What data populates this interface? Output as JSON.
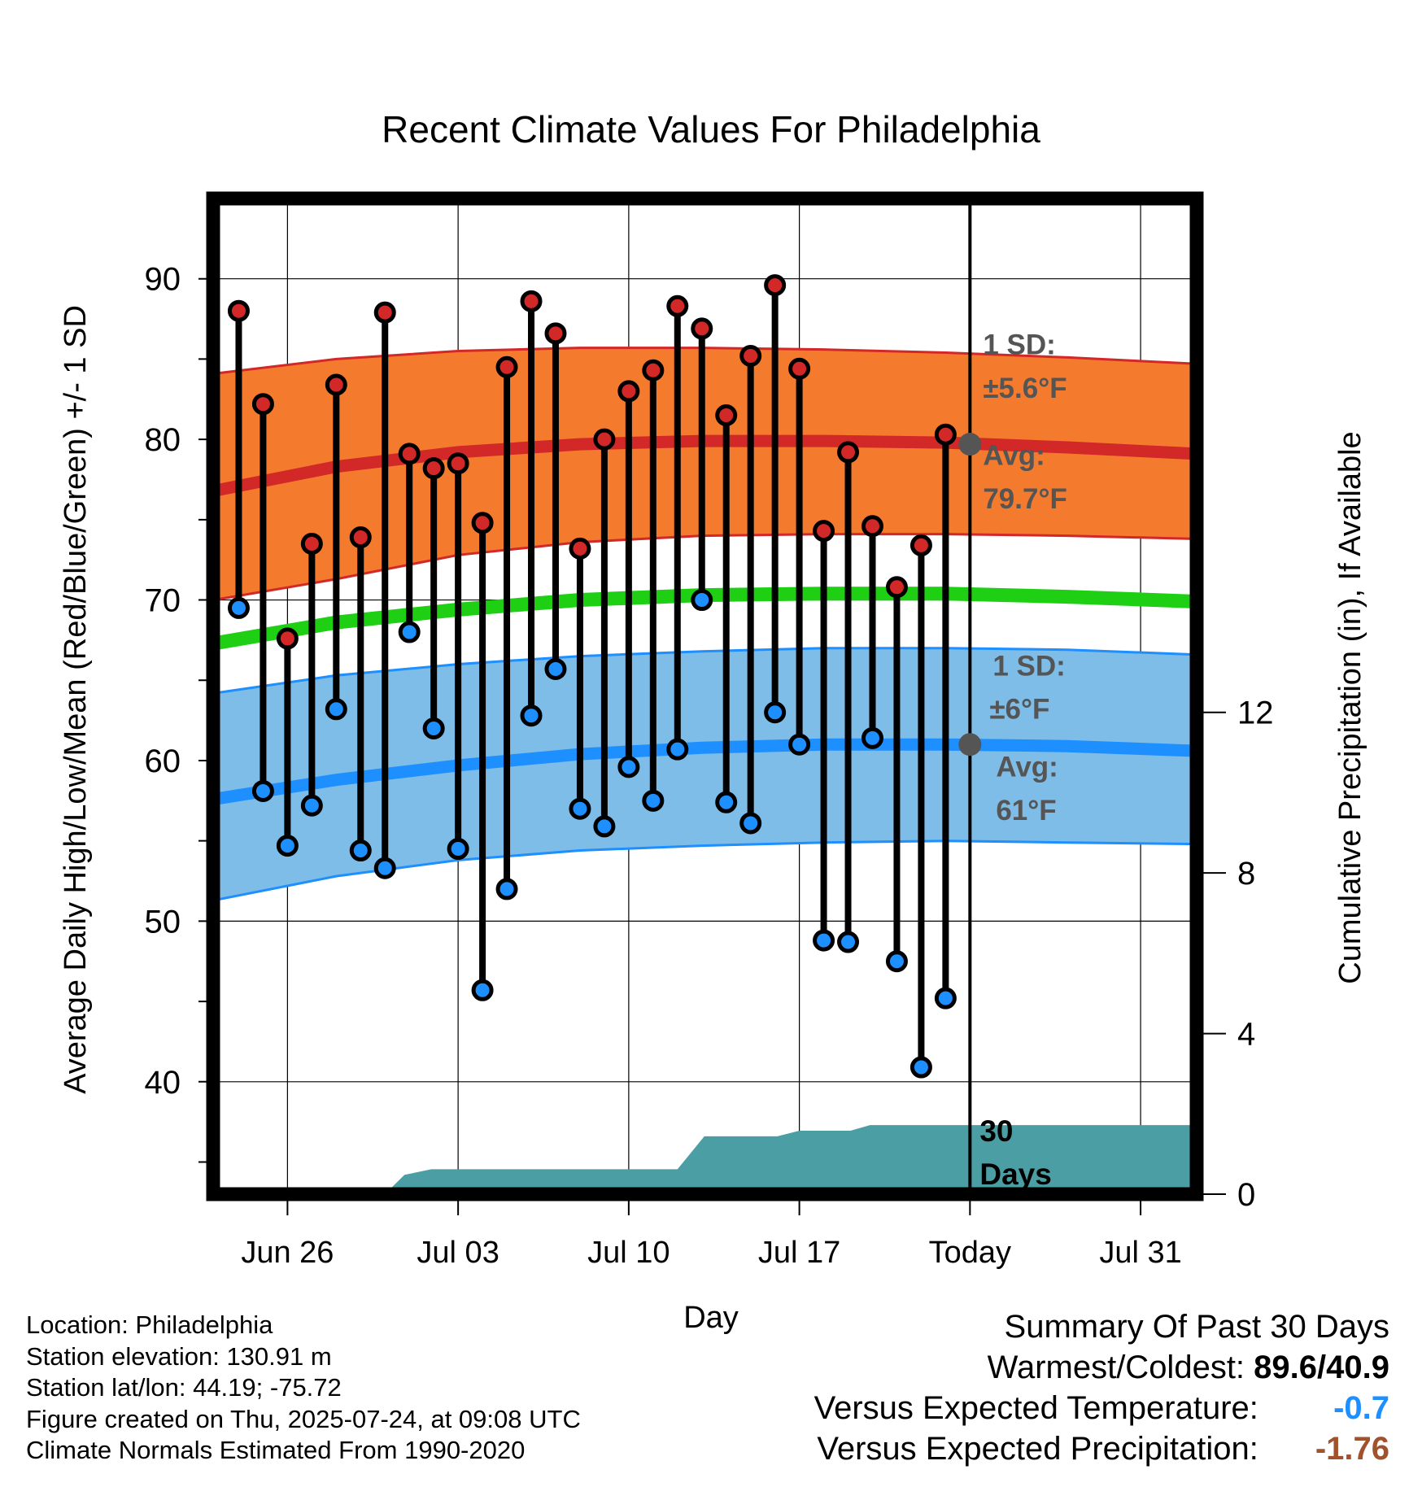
{
  "chart_data": {
    "type": "line",
    "title": "Recent Climate Values For Philadelphia",
    "xlabel": "Day",
    "ylabel": "Average Daily High/Low/Mean (Red/Blue/Green) +/- 1 SD",
    "y2label": "Cumulative Precipitation (in), If Available",
    "ylim": [
      33,
      95
    ],
    "y2lim": [
      0,
      24.8
    ],
    "y_ticks": [
      "40",
      "50",
      "60",
      "70",
      "80",
      "90"
    ],
    "y2_ticks": [
      "0",
      "4",
      "8",
      "12"
    ],
    "x_ticks": [
      {
        "day": 3,
        "label": "Jun 26"
      },
      {
        "day": 10,
        "label": "Jul 03"
      },
      {
        "day": 17,
        "label": "Jul 10"
      },
      {
        "day": 24,
        "label": "Jul 17"
      },
      {
        "day": 31,
        "label": "Today"
      },
      {
        "day": 38,
        "label": "Jul 31"
      }
    ],
    "x_range": [
      -0.05,
      40.3
    ],
    "today_day": 31,
    "grid": true,
    "observed": {
      "days": [
        1,
        2,
        3,
        4,
        5,
        6,
        7,
        8,
        9,
        10,
        11,
        12,
        13,
        14,
        15,
        16,
        17,
        18,
        19,
        20,
        21,
        22,
        23,
        24,
        25,
        26,
        27,
        28,
        29,
        30
      ],
      "highs": [
        88.0,
        82.2,
        67.6,
        73.5,
        83.4,
        73.9,
        87.9,
        79.1,
        78.2,
        78.5,
        74.8,
        84.5,
        88.6,
        86.6,
        73.2,
        80.0,
        83.0,
        84.3,
        88.3,
        86.9,
        81.5,
        85.2,
        89.6,
        84.4,
        74.3,
        79.2,
        74.6,
        70.8,
        73.4,
        80.3
      ],
      "lows": [
        69.5,
        58.1,
        54.7,
        57.2,
        63.2,
        54.4,
        53.3,
        68.0,
        62.0,
        54.5,
        45.7,
        52.0,
        62.8,
        65.7,
        57.0,
        55.9,
        59.6,
        57.5,
        60.7,
        70.0,
        57.4,
        56.1,
        63.0,
        61.0,
        48.8,
        48.7,
        61.4,
        47.5,
        40.9,
        45.2
      ]
    },
    "normals": {
      "days": [
        0,
        5,
        10,
        15,
        20,
        25,
        30,
        35,
        40.3
      ],
      "high_avg": [
        76.8,
        78.3,
        79.2,
        79.7,
        79.9,
        79.9,
        79.8,
        79.5,
        79.1
      ],
      "high_sd_upper": [
        84.1,
        85.0,
        85.5,
        85.7,
        85.7,
        85.6,
        85.4,
        85.1,
        84.7
      ],
      "high_sd_lower": [
        70.0,
        71.3,
        72.8,
        73.6,
        74.0,
        74.1,
        74.1,
        74.0,
        73.8
      ],
      "mean_avg": [
        67.3,
        68.6,
        69.4,
        70.0,
        70.3,
        70.4,
        70.4,
        70.2,
        69.9
      ],
      "low_avg": [
        57.6,
        58.8,
        59.7,
        60.4,
        60.8,
        61.0,
        61.0,
        60.9,
        60.6
      ],
      "low_sd_upper": [
        64.2,
        65.3,
        66.0,
        66.5,
        66.8,
        67.0,
        67.0,
        66.9,
        66.6
      ],
      "low_sd_lower": [
        51.3,
        52.8,
        53.8,
        54.4,
        54.7,
        54.9,
        55.0,
        54.9,
        54.8
      ]
    },
    "precipitation": {
      "days": [
        0,
        6.1,
        7,
        7.8,
        8.9,
        16,
        17.1,
        19,
        20.1,
        22.9,
        23.1,
        24,
        26.1,
        26.9,
        40.3
      ],
      "cumulative": [
        0,
        0,
        0,
        0.48,
        0.62,
        0.62,
        0.62,
        0.62,
        1.44,
        1.44,
        1.44,
        1.58,
        1.58,
        1.72,
        1.72
      ]
    },
    "labels": {
      "high_sd_line1": "1 SD:",
      "high_sd_line2": "±5.6°F",
      "high_avg_line1": "Avg:",
      "high_avg_line2": "79.7°F",
      "low_sd_line1": "1 SD:",
      "low_sd_line2": "±6°F",
      "low_avg_line1": "Avg:",
      "low_avg_line2": "61°F",
      "days_line1": "30",
      "days_line2": "Days"
    },
    "colors": {
      "high_band": "#f47a2e",
      "high_line": "#d22828",
      "mean_line": "#1ecf14",
      "low_band": "#7ebde8",
      "low_line": "#1e8fff",
      "precip_fill": "#4a9ea4",
      "high_marker": "#d22828",
      "low_marker": "#1e8fff",
      "label_text": "#555555"
    }
  },
  "meta": {
    "location": "Location: Philadelphia",
    "elevation": "Station elevation: 130.91 m",
    "latlon": "Station lat/lon: 44.19; -75.72",
    "created": "Figure created on Thu, 2025-07-24, at 09:08 UTC",
    "normals": "Climate Normals Estimated From 1990-2020"
  },
  "summary": {
    "title": "Summary Of Past 30 Days",
    "warm_cold_label": "Warmest/Coldest:",
    "warm_cold_value": "89.6/40.9",
    "temp_label": "Versus Expected Temperature:",
    "temp_value": "-0.7",
    "precip_label": "Versus Expected Precipitation:",
    "precip_value": "-1.76"
  }
}
